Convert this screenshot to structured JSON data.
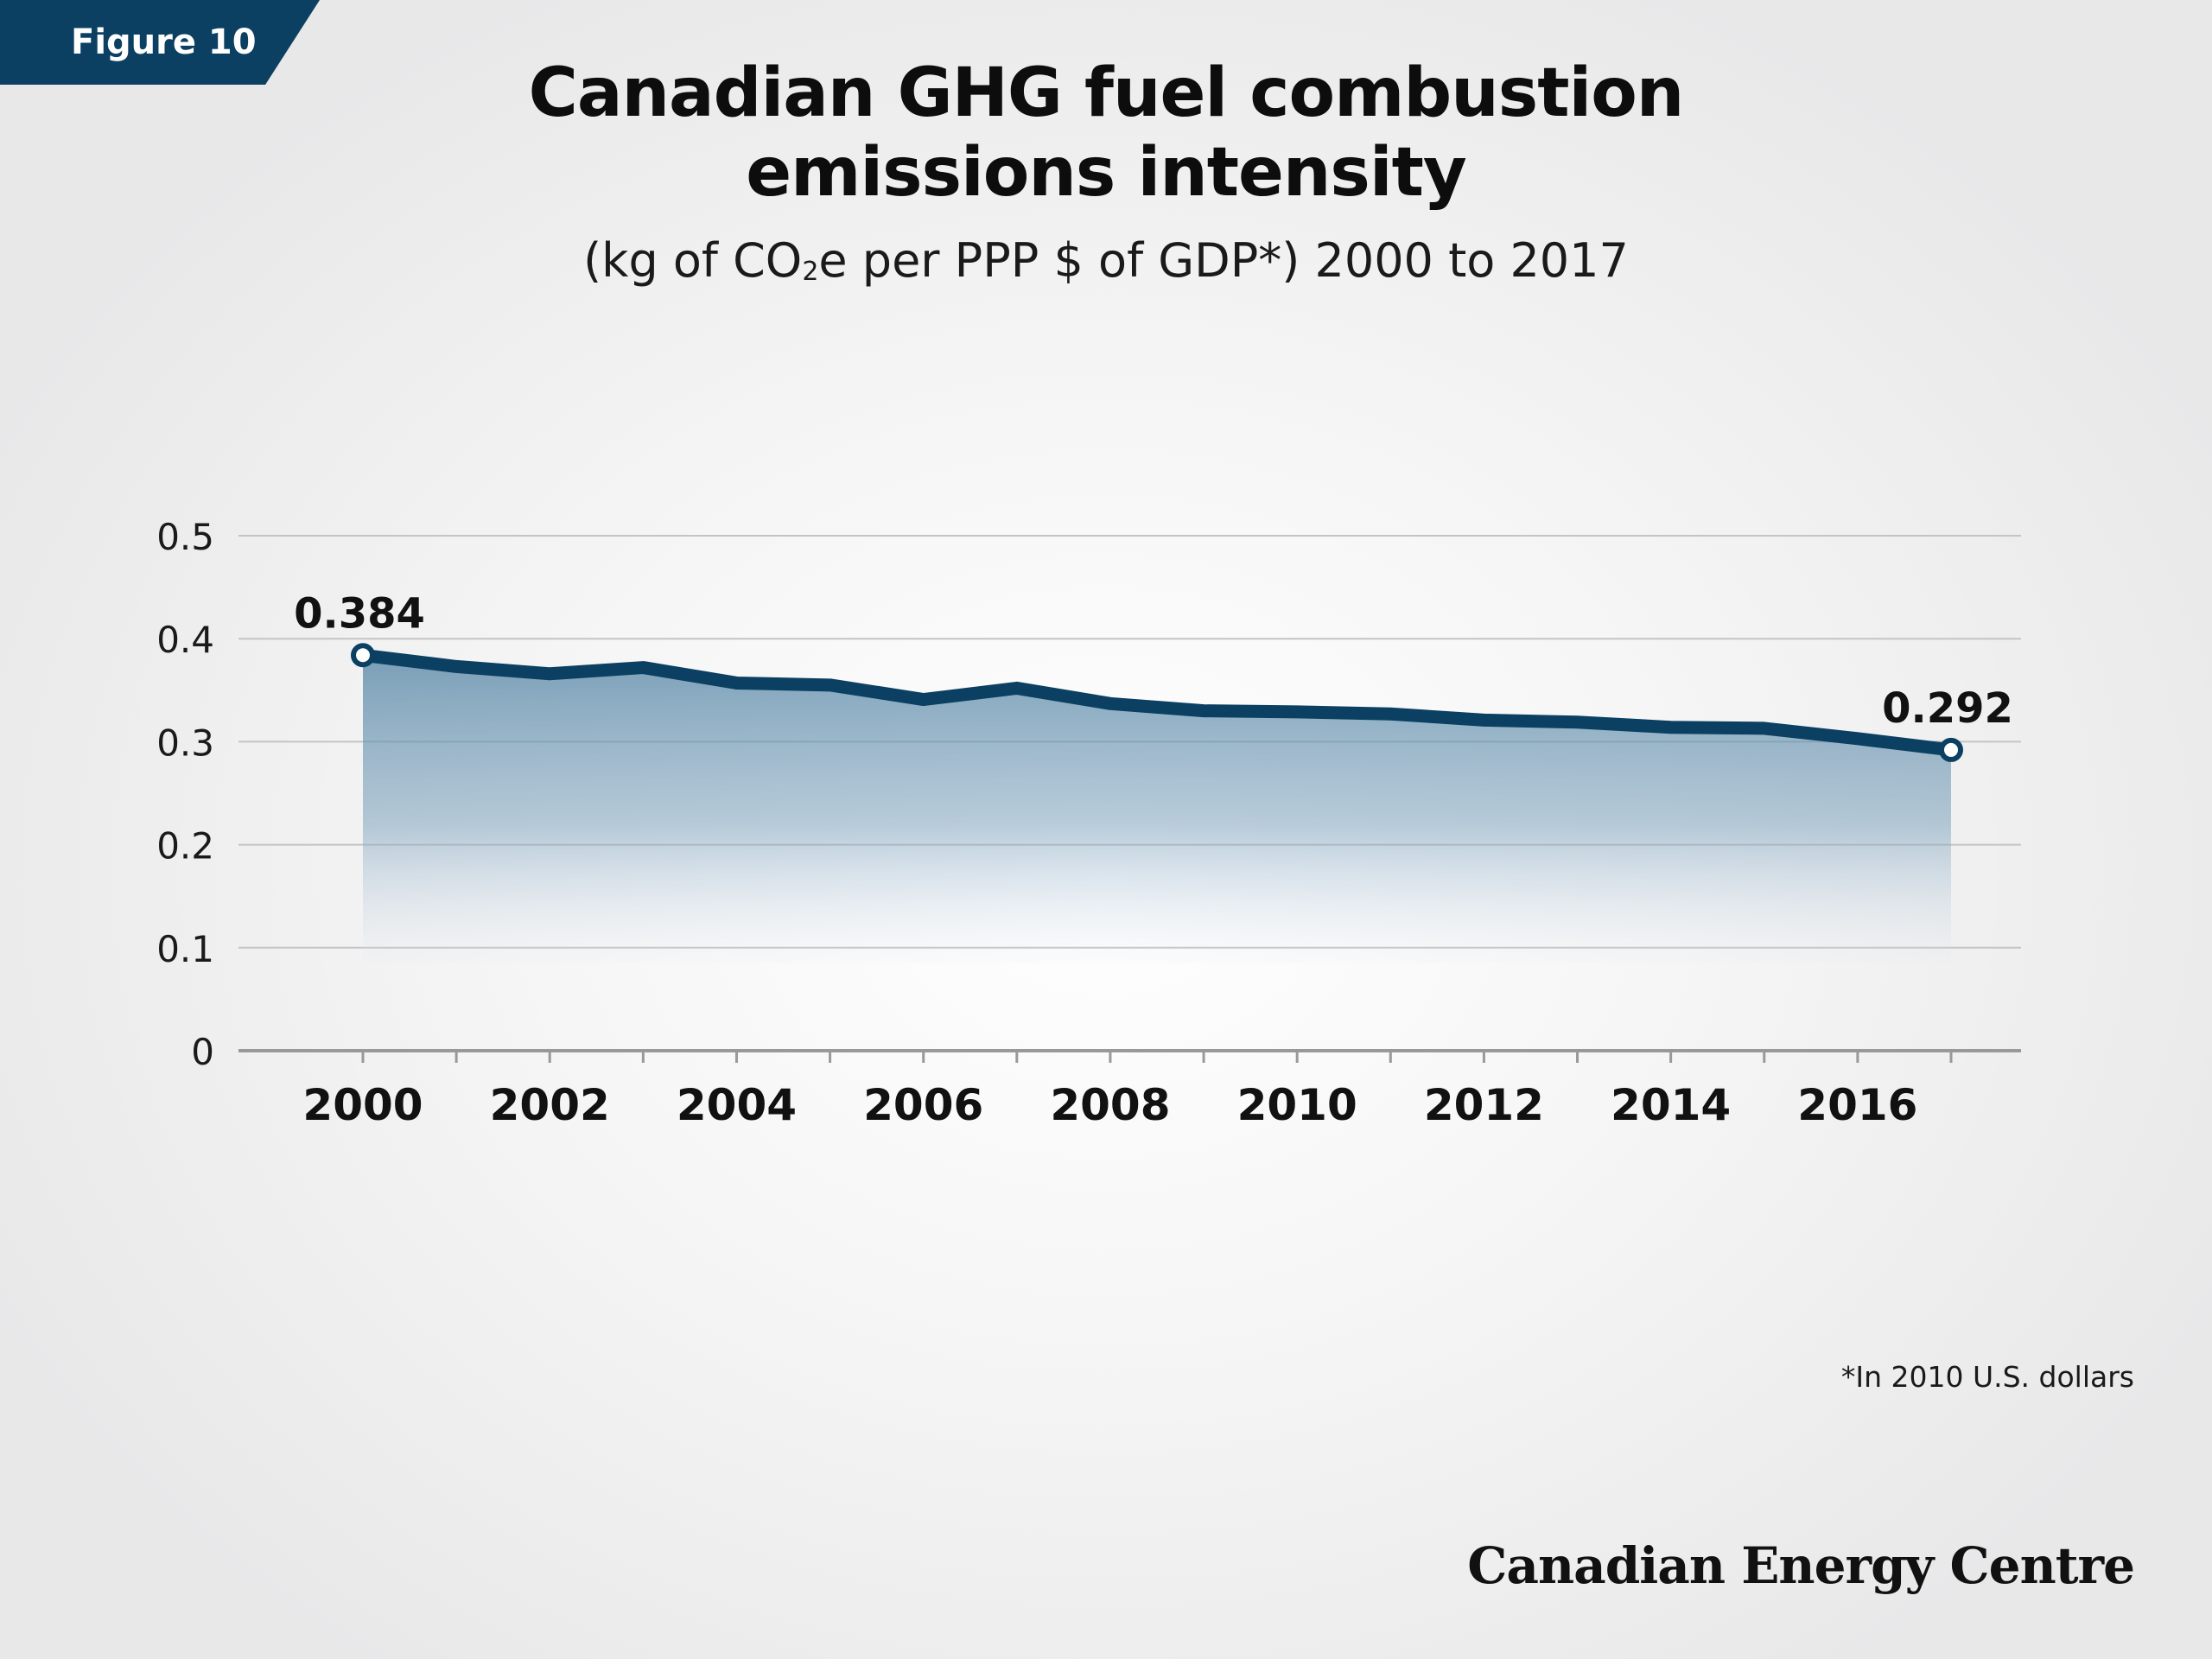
{
  "badge": {
    "label": "Figure 10"
  },
  "header": {
    "title_line1": "Canadian GHG fuel combustion",
    "title_line2": "emissions intensity",
    "subtitle_pre": "(kg of CO",
    "subtitle_sub": "2",
    "subtitle_post": "e per PPP $ of GDP*) 2000 to 2017"
  },
  "footnote": "*In 2010 U.S. dollars",
  "brand": "Canadian Energy Centre",
  "colors": {
    "line": "#0b4062",
    "badge": "#0b4062",
    "grid": "#c4c4c4",
    "axis": "#999999"
  },
  "chart_data": {
    "type": "area",
    "title": "Canadian GHG fuel combustion emissions intensity",
    "subtitle": "(kg of CO2e per PPP $ of GDP*) 2000 to 2017",
    "x": [
      2000,
      2001,
      2002,
      2003,
      2004,
      2005,
      2006,
      2007,
      2008,
      2009,
      2010,
      2011,
      2012,
      2013,
      2014,
      2015,
      2016,
      2017
    ],
    "values": [
      0.384,
      0.373,
      0.366,
      0.372,
      0.357,
      0.355,
      0.341,
      0.352,
      0.337,
      0.33,
      0.329,
      0.327,
      0.321,
      0.319,
      0.314,
      0.313,
      0.303,
      0.292
    ],
    "x_tick_labels": [
      "2000",
      "2002",
      "2004",
      "2006",
      "2008",
      "2010",
      "2012",
      "2014",
      "2016"
    ],
    "y_ticks": [
      0,
      0.1,
      0.2,
      0.3,
      0.4,
      0.5
    ],
    "y_tick_labels": [
      "0",
      "0.1",
      "0.2",
      "0.3",
      "0.4",
      "0.5"
    ],
    "ylim": [
      0,
      0.5
    ],
    "xlim": [
      2000,
      2017
    ],
    "grid": true,
    "data_labels": [
      {
        "x": 2000,
        "text": "0.384"
      },
      {
        "x": 2017,
        "text": "0.292"
      }
    ]
  }
}
